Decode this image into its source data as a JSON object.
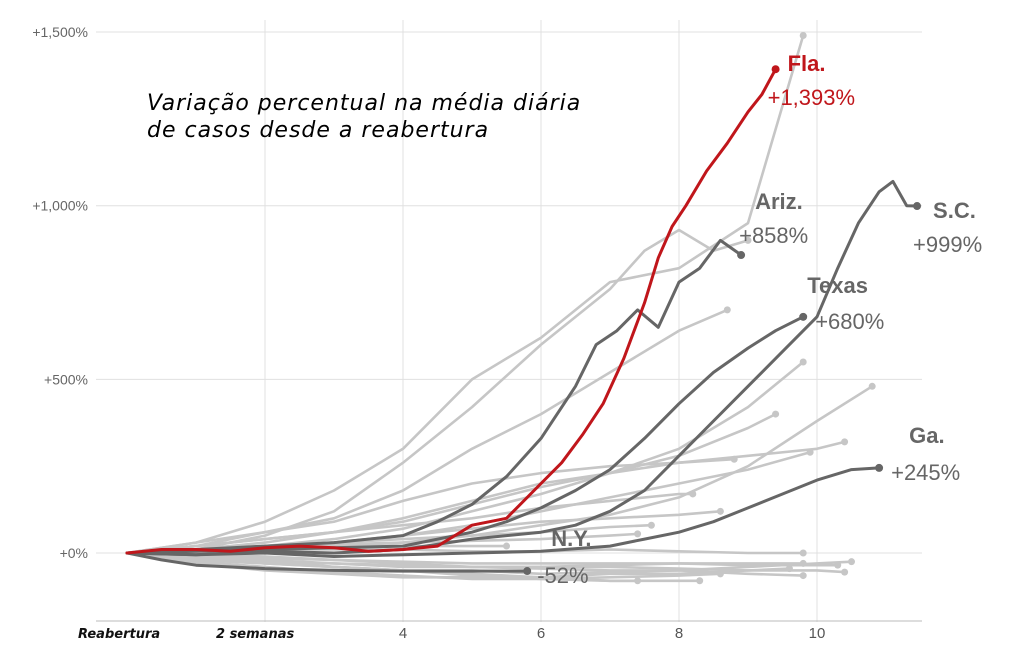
{
  "chart_data": {
    "type": "line",
    "title_lines": [
      "Variação percentual na média diária",
      "de casos desde a reabertura"
    ],
    "xlim": [
      0,
      11.8
    ],
    "ylim": [
      -150,
      1550
    ],
    "x_ticks": [
      {
        "x": 0,
        "label": "Reabertura",
        "style": "italic"
      },
      {
        "x": 2,
        "label": "2 semanas",
        "style": "italic"
      },
      {
        "x": 4,
        "label": "4",
        "style": "plain"
      },
      {
        "x": 6,
        "label": "6",
        "style": "plain"
      },
      {
        "x": 8,
        "label": "8",
        "style": "plain"
      },
      {
        "x": 10,
        "label": "10",
        "style": "plain"
      }
    ],
    "y_ticks": [
      {
        "y": 0,
        "label": "+0%"
      },
      {
        "y": 500,
        "label": "+500%"
      },
      {
        "y": 1000,
        "label": "+1,000%"
      },
      {
        "y": 1500,
        "label": "+1,500%"
      }
    ],
    "colors": {
      "highlight": "#c0161b",
      "state": "#666666",
      "other": "#c6c6c6",
      "grid": "#e0e0e0"
    },
    "series": [
      {
        "name": "Fla.",
        "value_label": "+1,393%",
        "color": "highlight",
        "x": [
          0,
          0.5,
          1,
          1.5,
          2,
          2.5,
          3,
          3.5,
          4,
          4.5,
          5,
          5.5,
          6,
          6.3,
          6.6,
          6.9,
          7.2,
          7.5,
          7.7,
          7.9,
          8.1,
          8.4,
          8.7,
          9,
          9.2,
          9.4
        ],
        "y": [
          0,
          10,
          10,
          5,
          15,
          20,
          15,
          5,
          10,
          20,
          80,
          100,
          200,
          260,
          340,
          430,
          560,
          720,
          850,
          940,
          1000,
          1100,
          1180,
          1270,
          1320,
          1393
        ]
      },
      {
        "name": "S.C.",
        "value_label": "+999%",
        "color": "state",
        "x": [
          0,
          1,
          2,
          3,
          4,
          5,
          6,
          6.5,
          7,
          7.5,
          8,
          8.5,
          9,
          9.5,
          10,
          10.3,
          10.6,
          10.9,
          11.1,
          11.3,
          11.45
        ],
        "y": [
          0,
          -5,
          5,
          0,
          10,
          40,
          60,
          80,
          120,
          180,
          280,
          380,
          480,
          580,
          680,
          820,
          950,
          1040,
          1070,
          1000,
          999
        ]
      },
      {
        "name": "Texas",
        "value_label": "+680%",
        "color": "state",
        "x": [
          0,
          1,
          2,
          3,
          4,
          5,
          5.5,
          6,
          6.5,
          7,
          7.5,
          8,
          8.5,
          9,
          9.4,
          9.8
        ],
        "y": [
          0,
          5,
          10,
          15,
          20,
          60,
          90,
          130,
          180,
          240,
          330,
          430,
          520,
          590,
          640,
          680
        ]
      },
      {
        "name": "Ariz.",
        "value_label": "+858%",
        "color": "state",
        "x": [
          0,
          1,
          2,
          3,
          4,
          4.5,
          5,
          5.5,
          6,
          6.5,
          6.8,
          7.1,
          7.4,
          7.7,
          8,
          8.3,
          8.6,
          8.9
        ],
        "y": [
          0,
          10,
          20,
          30,
          50,
          90,
          140,
          220,
          330,
          480,
          600,
          640,
          700,
          650,
          780,
          820,
          900,
          858
        ]
      },
      {
        "name": "Ga.",
        "value_label": "+245%",
        "color": "state",
        "x": [
          0,
          1,
          2,
          3,
          4,
          5,
          6,
          7,
          7.5,
          8,
          8.5,
          9,
          9.5,
          10,
          10.5,
          10.9
        ],
        "y": [
          0,
          -5,
          0,
          -10,
          -5,
          0,
          5,
          20,
          40,
          60,
          90,
          130,
          170,
          210,
          240,
          245
        ]
      },
      {
        "name": "N.Y.",
        "value_label": "-52%",
        "color": "state",
        "x": [
          0,
          0.5,
          1,
          2,
          3,
          4,
          5,
          5.8
        ],
        "y": [
          0,
          -20,
          -35,
          -45,
          -50,
          -52,
          -52,
          -52
        ]
      },
      {
        "color": "other",
        "x": [
          0,
          1,
          2,
          3,
          4,
          5,
          6,
          7,
          8,
          9,
          9.8
        ],
        "y": [
          0,
          30,
          90,
          180,
          300,
          500,
          620,
          780,
          820,
          950,
          1490
        ]
      },
      {
        "color": "other",
        "x": [
          0,
          1,
          2,
          3,
          4,
          5,
          6,
          7,
          7.5,
          8,
          8.5,
          9
        ],
        "y": [
          0,
          10,
          50,
          120,
          260,
          420,
          600,
          760,
          870,
          930,
          870,
          900
        ]
      },
      {
        "color": "other",
        "x": [
          0,
          1,
          2,
          3,
          4,
          5,
          6,
          7,
          8,
          8.7
        ],
        "y": [
          0,
          20,
          60,
          100,
          180,
          300,
          400,
          520,
          640,
          700
        ]
      },
      {
        "color": "other",
        "x": [
          0,
          1,
          2,
          3,
          4,
          5,
          6,
          7,
          8,
          9,
          9.8
        ],
        "y": [
          0,
          5,
          20,
          40,
          70,
          120,
          170,
          230,
          300,
          420,
          550
        ]
      },
      {
        "color": "other",
        "x": [
          0,
          1,
          2,
          3,
          4,
          5,
          6,
          7,
          8,
          9,
          10,
          10.8
        ],
        "y": [
          0,
          0,
          10,
          20,
          30,
          50,
          80,
          110,
          160,
          250,
          380,
          480
        ]
      },
      {
        "color": "other",
        "x": [
          0,
          1,
          2,
          3,
          4,
          5,
          6,
          7,
          8,
          9,
          9.4
        ],
        "y": [
          0,
          10,
          30,
          60,
          90,
          140,
          190,
          230,
          280,
          360,
          400
        ]
      },
      {
        "color": "other",
        "x": [
          0,
          1,
          2,
          3,
          4,
          5,
          6,
          7,
          8,
          9,
          10,
          10.4
        ],
        "y": [
          0,
          20,
          40,
          60,
          100,
          150,
          200,
          230,
          260,
          280,
          300,
          320
        ]
      },
      {
        "color": "other",
        "x": [
          0,
          1,
          2,
          3,
          4,
          5,
          6,
          7,
          8,
          9,
          9.9
        ],
        "y": [
          0,
          0,
          10,
          30,
          50,
          80,
          120,
          160,
          200,
          240,
          290
        ]
      },
      {
        "color": "other",
        "x": [
          0,
          1,
          2,
          3,
          4,
          5,
          6,
          7,
          8,
          8.8
        ],
        "y": [
          0,
          30,
          60,
          90,
          150,
          200,
          230,
          250,
          260,
          270
        ]
      },
      {
        "color": "other",
        "x": [
          0,
          1,
          2,
          3,
          4,
          5,
          6,
          7,
          8,
          8.2
        ],
        "y": [
          0,
          20,
          40,
          60,
          80,
          100,
          130,
          150,
          170,
          170
        ]
      },
      {
        "color": "other",
        "x": [
          0,
          1,
          2,
          3,
          4,
          5,
          6,
          7,
          8,
          8.6
        ],
        "y": [
          0,
          10,
          20,
          30,
          50,
          70,
          90,
          100,
          110,
          120
        ]
      },
      {
        "color": "other",
        "x": [
          0,
          1,
          2,
          3,
          4,
          5,
          6,
          7,
          7.6
        ],
        "y": [
          0,
          10,
          20,
          30,
          40,
          50,
          60,
          75,
          80
        ]
      },
      {
        "color": "other",
        "x": [
          0,
          1,
          2,
          3,
          4,
          5,
          6,
          7,
          7.4
        ],
        "y": [
          0,
          10,
          20,
          25,
          30,
          35,
          40,
          50,
          55
        ]
      },
      {
        "color": "other",
        "x": [
          0,
          1,
          2,
          3,
          4,
          5,
          6,
          7,
          8,
          9,
          10,
          10.5
        ],
        "y": [
          0,
          -20,
          -30,
          -40,
          -50,
          -50,
          -60,
          -55,
          -50,
          -40,
          -30,
          -25
        ]
      },
      {
        "color": "other",
        "x": [
          0,
          1,
          2,
          3,
          4,
          5,
          6,
          7,
          8,
          9,
          9.6
        ],
        "y": [
          0,
          -30,
          -50,
          -60,
          -70,
          -70,
          -70,
          -60,
          -60,
          -50,
          -45
        ]
      },
      {
        "color": "other",
        "x": [
          0,
          1,
          2,
          3,
          4,
          5,
          6,
          7,
          8,
          8.6
        ],
        "y": [
          0,
          -25,
          -40,
          -55,
          -65,
          -75,
          -75,
          -70,
          -65,
          -60
        ]
      },
      {
        "color": "other",
        "x": [
          0,
          1,
          2,
          3,
          4,
          5,
          6,
          7,
          8,
          8.3
        ],
        "y": [
          0,
          -10,
          -20,
          -40,
          -50,
          -65,
          -75,
          -80,
          -80,
          -80
        ]
      },
      {
        "color": "other",
        "x": [
          0,
          1,
          2,
          3,
          4,
          5,
          6,
          7,
          7.4
        ],
        "y": [
          0,
          -20,
          -30,
          -40,
          -50,
          -60,
          -70,
          -80,
          -80
        ]
      },
      {
        "color": "other",
        "x": [
          0,
          1,
          2,
          3,
          4,
          5,
          6,
          7,
          8,
          9,
          10,
          10.4
        ],
        "y": [
          0,
          -10,
          -20,
          -30,
          -40,
          -40,
          -40,
          -40,
          -45,
          -50,
          -50,
          -55
        ]
      },
      {
        "color": "other",
        "x": [
          0,
          1,
          2,
          3,
          4,
          5,
          6,
          7,
          8,
          9,
          9.8
        ],
        "y": [
          0,
          -15,
          -25,
          -30,
          -35,
          -40,
          -40,
          -35,
          -30,
          -30,
          -30
        ]
      },
      {
        "color": "other",
        "x": [
          0,
          1,
          2,
          3,
          4,
          5,
          6,
          7,
          8,
          9,
          9.8
        ],
        "y": [
          0,
          -5,
          -10,
          -20,
          -30,
          -40,
          -45,
          -50,
          -50,
          -60,
          -65
        ]
      },
      {
        "color": "other",
        "x": [
          0,
          1,
          2,
          3,
          4,
          5,
          5.5
        ],
        "y": [
          0,
          10,
          20,
          20,
          20,
          20,
          20
        ]
      },
      {
        "color": "other",
        "x": [
          0,
          1,
          2,
          3,
          4,
          5,
          6,
          7,
          8,
          9,
          9.8
        ],
        "y": [
          0,
          5,
          10,
          10,
          10,
          5,
          5,
          10,
          5,
          0,
          0
        ]
      },
      {
        "color": "other",
        "x": [
          0,
          1,
          2,
          3,
          4,
          5,
          6,
          7,
          8,
          9,
          10,
          10.3
        ],
        "y": [
          0,
          -10,
          -15,
          -20,
          -25,
          -30,
          -30,
          -30,
          -30,
          -35,
          -35,
          -35
        ]
      }
    ]
  }
}
